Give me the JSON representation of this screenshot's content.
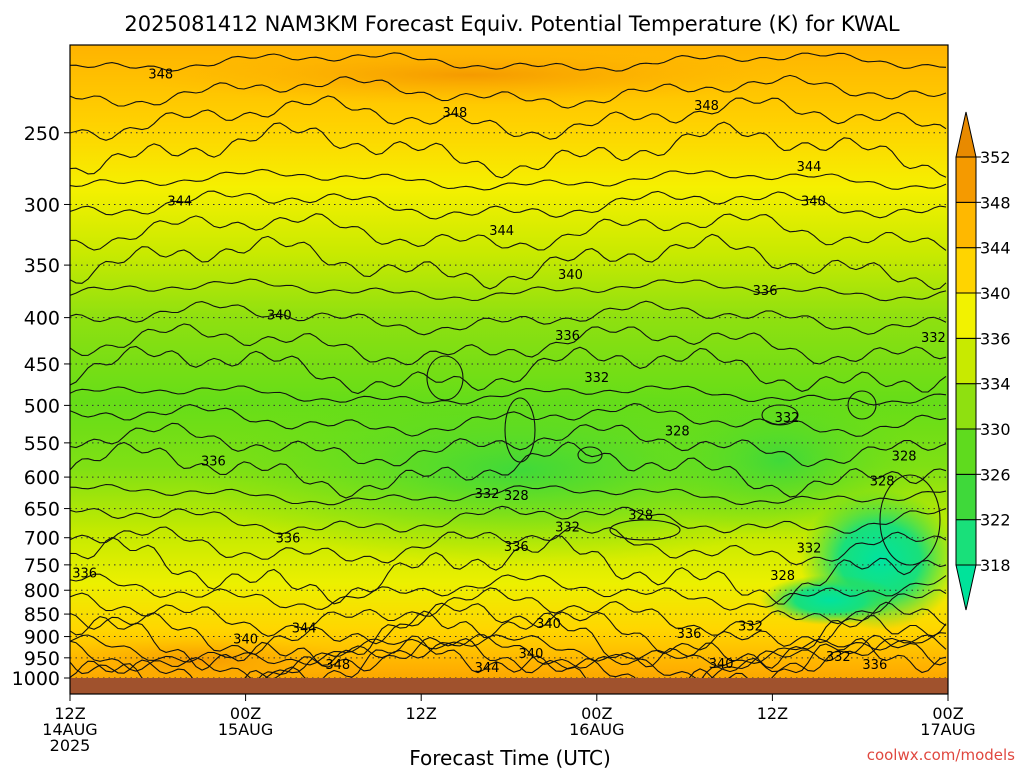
{
  "chart_data": {
    "type": "heatmap",
    "title": "2025081412 NAM3KM Forecast Equiv. Potential Temperature (K) for KWAL",
    "xlabel": "Forecast Time (UTC)",
    "ylabel": "",
    "credit": "coolwx.com/models",
    "x_ticks": [
      {
        "hours": 0,
        "l1": "12Z",
        "l2": "14AUG",
        "l3": "2025"
      },
      {
        "hours": 12,
        "l1": "00Z",
        "l2": "15AUG",
        "l3": ""
      },
      {
        "hours": 24,
        "l1": "12Z",
        "l2": "",
        "l3": ""
      },
      {
        "hours": 36,
        "l1": "00Z",
        "l2": "16AUG",
        "l3": ""
      },
      {
        "hours": 48,
        "l1": "12Z",
        "l2": "",
        "l3": ""
      },
      {
        "hours": 60,
        "l1": "00Z",
        "l2": "17AUG",
        "l3": ""
      }
    ],
    "y_ticks": [
      250,
      300,
      350,
      400,
      450,
      500,
      550,
      600,
      650,
      700,
      750,
      800,
      850,
      900,
      950,
      1000
    ],
    "ylim": [
      1000,
      200
    ],
    "xlim": [
      0,
      60
    ],
    "y_scale": "log",
    "colorbar": {
      "levels": [
        318,
        322,
        326,
        330,
        334,
        336,
        340,
        344,
        348,
        352
      ],
      "labels": [
        "318",
        "322",
        "326",
        "330",
        "334",
        "336",
        "340",
        "344",
        "348",
        "352"
      ],
      "colors": [
        "#00e39a",
        "#19e07a",
        "#3fd93a",
        "#5fdb1e",
        "#8fe010",
        "#c8ea00",
        "#f2f200",
        "#ffd400",
        "#ffb800",
        "#f59a00",
        "#e88a00"
      ],
      "extend": "both"
    },
    "contour_labels": [
      {
        "text": "348",
        "hours": 6.2,
        "p": 215
      },
      {
        "text": "348",
        "hours": 26.3,
        "p": 237
      },
      {
        "text": "348",
        "hours": 43.5,
        "p": 233
      },
      {
        "text": "344",
        "hours": 50.5,
        "p": 272
      },
      {
        "text": "344",
        "hours": 29.5,
        "p": 320
      },
      {
        "text": "344",
        "hours": 7.5,
        "p": 297
      },
      {
        "text": "340",
        "hours": 50.8,
        "p": 297
      },
      {
        "text": "340",
        "hours": 34.2,
        "p": 358
      },
      {
        "text": "340",
        "hours": 14.3,
        "p": 397
      },
      {
        "text": "336",
        "hours": 34.0,
        "p": 418
      },
      {
        "text": "336",
        "hours": 47.5,
        "p": 373
      },
      {
        "text": "332",
        "hours": 36.0,
        "p": 465
      },
      {
        "text": "332",
        "hours": 59.0,
        "p": 420
      },
      {
        "text": "332",
        "hours": 49.0,
        "p": 515
      },
      {
        "text": "328",
        "hours": 41.5,
        "p": 533
      },
      {
        "text": "328",
        "hours": 55.5,
        "p": 605
      },
      {
        "text": "328",
        "hours": 57.0,
        "p": 568
      },
      {
        "text": "328",
        "hours": 30.5,
        "p": 628
      },
      {
        "text": "328",
        "hours": 39.0,
        "p": 660
      },
      {
        "text": "336",
        "hours": 9.8,
        "p": 575
      },
      {
        "text": "336",
        "hours": 14.9,
        "p": 700
      },
      {
        "text": "336",
        "hours": 30.5,
        "p": 715
      },
      {
        "text": "332",
        "hours": 28.5,
        "p": 625
      },
      {
        "text": "332",
        "hours": 34.0,
        "p": 680
      },
      {
        "text": "332",
        "hours": 50.5,
        "p": 718
      },
      {
        "text": "328",
        "hours": 48.7,
        "p": 770
      },
      {
        "text": "336",
        "hours": 1.0,
        "p": 765
      },
      {
        "text": "344",
        "hours": 16.0,
        "p": 880
      },
      {
        "text": "340",
        "hours": 12.0,
        "p": 905
      },
      {
        "text": "340",
        "hours": 32.7,
        "p": 870
      },
      {
        "text": "336",
        "hours": 42.3,
        "p": 892
      },
      {
        "text": "332",
        "hours": 46.5,
        "p": 875
      },
      {
        "text": "340",
        "hours": 31.5,
        "p": 938
      },
      {
        "text": "344",
        "hours": 28.5,
        "p": 973
      },
      {
        "text": "348",
        "hours": 18.3,
        "p": 965
      },
      {
        "text": "340",
        "hours": 44.5,
        "p": 962
      },
      {
        "text": "332",
        "hours": 52.5,
        "p": 945
      },
      {
        "text": "336",
        "hours": 55.0,
        "p": 965
      }
    ]
  }
}
